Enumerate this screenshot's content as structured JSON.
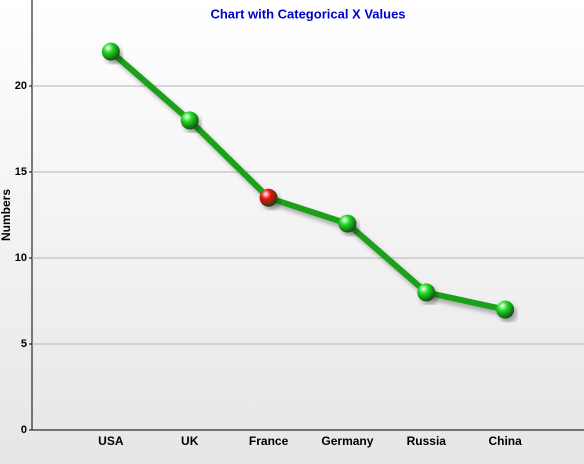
{
  "chart_data": {
    "type": "line",
    "title": "Chart with Categorical X Values",
    "y_label": "Numbers",
    "categories": [
      "USA",
      "UK",
      "France",
      "Germany",
      "Russia",
      "China"
    ],
    "series": [
      {
        "color": "#1aa01a",
        "values": [
          22,
          18,
          13.5,
          12,
          8,
          7
        ],
        "marker_colors": [
          "#22dd22",
          "#22dd22",
          "#ee1111",
          "#22dd22",
          "#22dd22",
          "#22dd22"
        ]
      }
    ],
    "ylim": [
      0,
      25
    ],
    "yticks": [
      0,
      5,
      10,
      15,
      20
    ],
    "grid": true
  }
}
